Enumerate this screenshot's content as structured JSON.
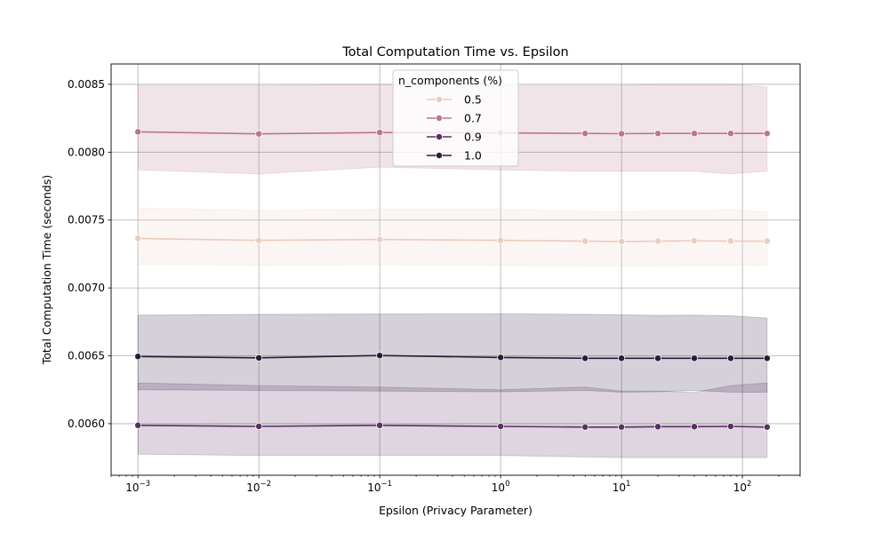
{
  "chart_data": {
    "type": "line",
    "title": "Total Computation Time vs. Epsilon",
    "xlabel": "Epsilon (Privacy Parameter)",
    "ylabel": "Total Computation Time (seconds)",
    "xscale": "log",
    "xlim": [
      0.0006,
      300
    ],
    "ylim": [
      0.00562,
      0.00865
    ],
    "x": [
      0.001,
      0.01,
      0.1,
      1,
      5,
      10,
      20,
      40,
      80,
      160
    ],
    "x_ticks": [
      {
        "value": 0.001,
        "base": "10",
        "exp": "−3"
      },
      {
        "value": 0.01,
        "base": "10",
        "exp": "−2"
      },
      {
        "value": 0.1,
        "base": "10",
        "exp": "−1"
      },
      {
        "value": 1,
        "base": "10",
        "exp": "0"
      },
      {
        "value": 10,
        "base": "10",
        "exp": "1"
      },
      {
        "value": 100,
        "base": "10",
        "exp": "2"
      }
    ],
    "y_ticks": [
      {
        "value": 0.006,
        "label": "0.0060"
      },
      {
        "value": 0.0065,
        "label": "0.0065"
      },
      {
        "value": 0.007,
        "label": "0.0070"
      },
      {
        "value": 0.0075,
        "label": "0.0075"
      },
      {
        "value": 0.008,
        "label": "0.0080"
      },
      {
        "value": 0.0085,
        "label": "0.0085"
      }
    ],
    "grid": true,
    "legend": {
      "title": "n_components (%)",
      "placement": "top-center"
    },
    "series": [
      {
        "name": "0.5",
        "color": "#ebcbc1",
        "values": [
          0.007365,
          0.00735,
          0.007357,
          0.00735,
          0.007345,
          0.007342,
          0.007345,
          0.007348,
          0.007345,
          0.007345
        ],
        "ci_lower": [
          0.007175,
          0.007165,
          0.00717,
          0.007165,
          0.007162,
          0.00716,
          0.007162,
          0.007165,
          0.007165,
          0.007165
        ],
        "ci_upper": [
          0.00759,
          0.00757,
          0.00758,
          0.00758,
          0.007565,
          0.00756,
          0.00757,
          0.00757,
          0.007575,
          0.00756
        ]
      },
      {
        "name": "0.7",
        "color": "#b87693",
        "values": [
          0.00815,
          0.008135,
          0.008145,
          0.008142,
          0.008138,
          0.008136,
          0.008138,
          0.008138,
          0.008138,
          0.008138
        ],
        "ci_lower": [
          0.00787,
          0.00784,
          0.00789,
          0.00787,
          0.00786,
          0.00786,
          0.00786,
          0.00786,
          0.00784,
          0.00786
        ],
        "ci_upper": [
          0.00849,
          0.00849,
          0.0085,
          0.00849,
          0.00849,
          0.00849,
          0.0085,
          0.0085,
          0.0085,
          0.00848
        ]
      },
      {
        "name": "0.9",
        "color": "#5b2f62",
        "values": [
          0.005988,
          0.00598,
          0.005988,
          0.00598,
          0.005975,
          0.005975,
          0.005978,
          0.005978,
          0.00598,
          0.005975
        ],
        "ci_lower": [
          0.005775,
          0.005765,
          0.005765,
          0.005765,
          0.005755,
          0.00575,
          0.00575,
          0.00575,
          0.00575,
          0.00575
        ],
        "ci_upper": [
          0.0063,
          0.00628,
          0.00627,
          0.00625,
          0.00627,
          0.00624,
          0.00624,
          0.00623,
          0.00628,
          0.0063
        ]
      },
      {
        "name": "1.0",
        "color": "#2a1a3c",
        "values": [
          0.006495,
          0.006485,
          0.006502,
          0.006488,
          0.006482,
          0.006482,
          0.006482,
          0.006482,
          0.006482,
          0.006482
        ],
        "ci_lower": [
          0.00625,
          0.006245,
          0.00624,
          0.006235,
          0.006245,
          0.006232,
          0.006235,
          0.006245,
          0.006232,
          0.006232
        ],
        "ci_upper": [
          0.0068,
          0.006805,
          0.006808,
          0.00681,
          0.006805,
          0.006802,
          0.006798,
          0.0068,
          0.006795,
          0.006778
        ]
      }
    ]
  }
}
